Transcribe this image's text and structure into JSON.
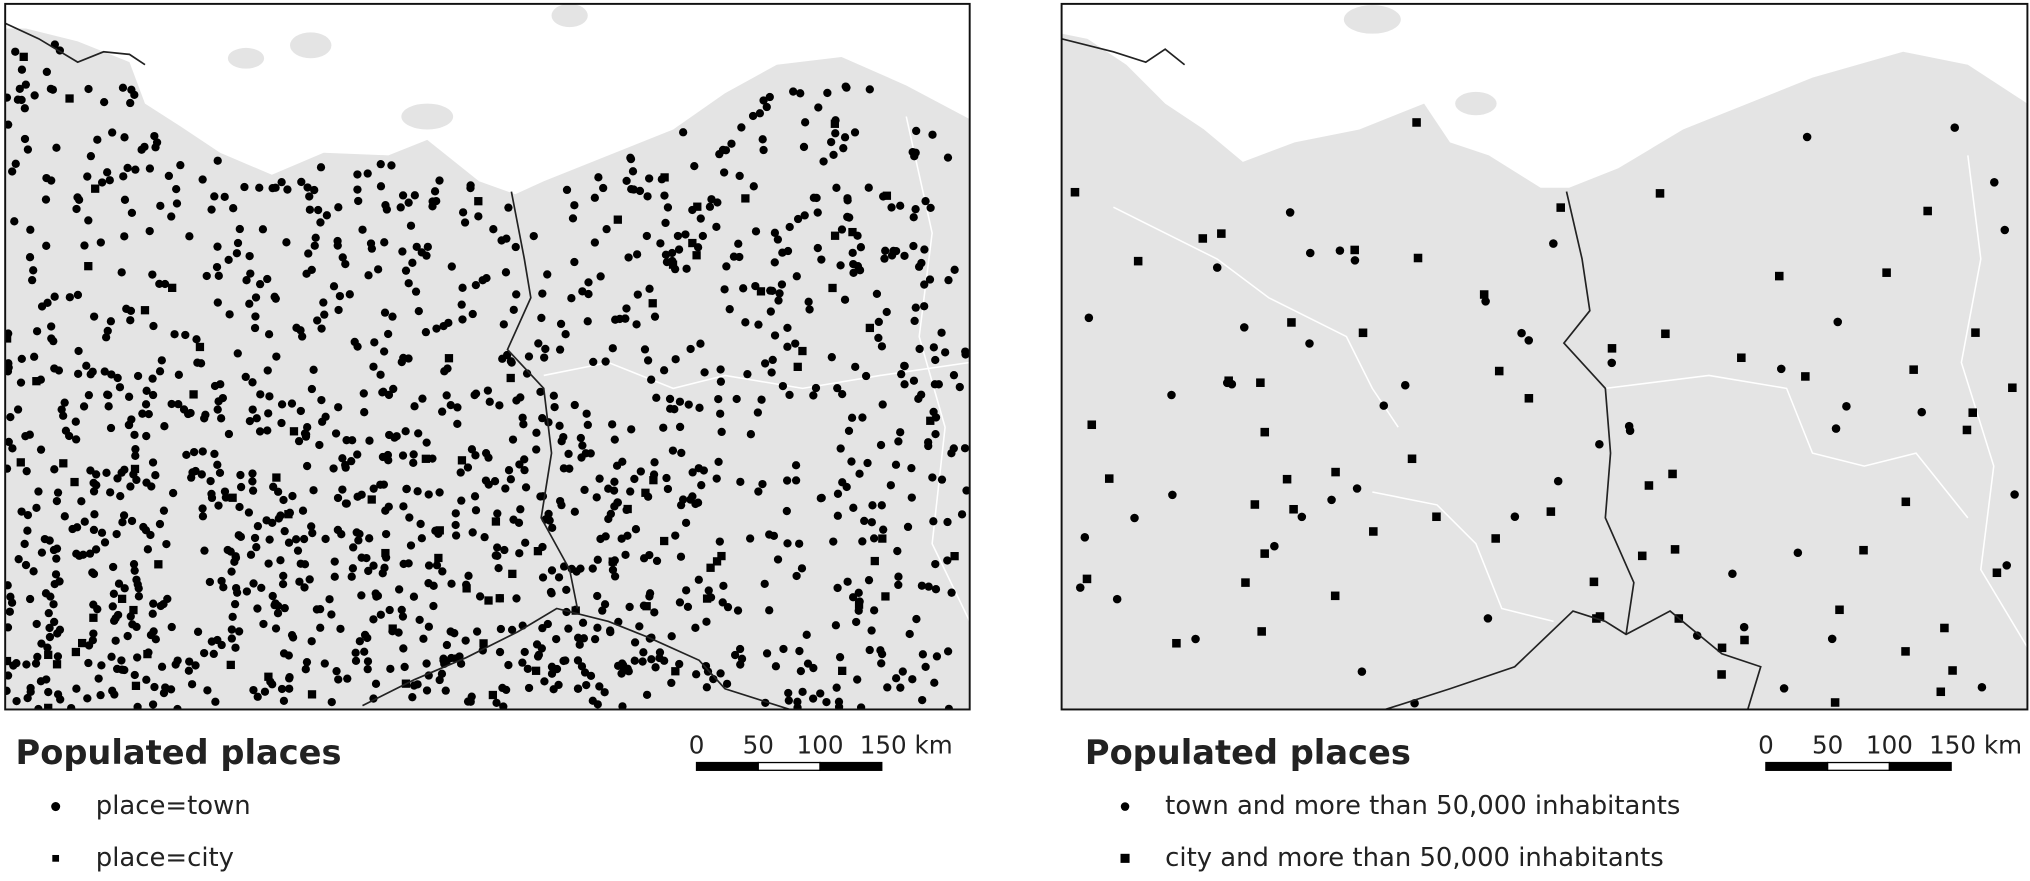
{
  "panels": [
    {
      "legend": {
        "title": "Populated places",
        "items": [
          {
            "symbol": "circle",
            "label": "place=town"
          },
          {
            "symbol": "square",
            "label": "place=city"
          }
        ]
      },
      "scale_bar": {
        "labels": [
          "0",
          "50",
          "100",
          "150 km"
        ]
      }
    },
    {
      "legend": {
        "title": "Populated places",
        "items": [
          {
            "symbol": "circle",
            "label": "town and more than 50,000 inhabitants"
          },
          {
            "symbol": "square",
            "label": "city and more than 50,000 inhabitants"
          }
        ]
      },
      "scale_bar": {
        "labels": [
          "0",
          "50",
          "100",
          "150 km"
        ]
      }
    }
  ]
}
